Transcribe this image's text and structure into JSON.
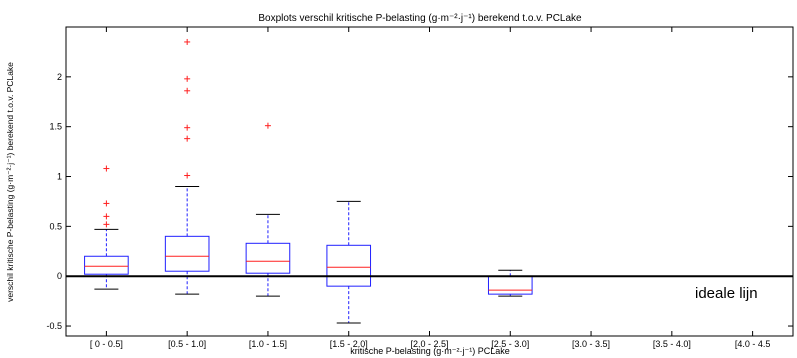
{
  "chart_data": {
    "type": "boxplot",
    "title": "Boxplots verschil kritische P-belasting (g·m⁻²·j⁻¹) berekend t.o.v. PCLake",
    "xlabel": "kritische P-belasting (g·m⁻²·j⁻¹) PCLake",
    "ylabel": "verschil kritische P-belasting (g·m⁻²·j⁻¹) berekend t.o.v. PCLake",
    "ylim": [
      -0.6,
      2.5
    ],
    "yticks": [
      -0.5,
      0,
      0.5,
      1,
      1.5,
      2
    ],
    "ytick_labels": [
      "-0.5",
      "0",
      "0.5",
      "1",
      "1.5",
      "2"
    ],
    "grid": false,
    "categories": [
      "[  0 - 0.5]",
      "[0.5 - 1.0]",
      "[1.0 - 1.5]",
      "[1.5 - 2.0]",
      "[2.0 - 2.5]",
      "[2.5 - 3.0]",
      "[3.0 - 3.5]",
      "[3.5 - 4.0]",
      "[4.0 - 4.5"
    ],
    "boxes": [
      {
        "category": "[  0 - 0.5]",
        "whisker_low": -0.13,
        "q1": 0.02,
        "median": 0.1,
        "q3": 0.2,
        "whisker_high": 0.47,
        "outliers": [
          0.52,
          0.6,
          0.73,
          1.08
        ]
      },
      {
        "category": "[0.5 - 1.0]",
        "whisker_low": -0.18,
        "q1": 0.05,
        "median": 0.2,
        "q3": 0.4,
        "whisker_high": 0.9,
        "outliers": [
          1.01,
          1.38,
          1.49,
          1.86,
          1.98,
          2.35
        ]
      },
      {
        "category": "[1.0 - 1.5]",
        "whisker_low": -0.2,
        "q1": 0.03,
        "median": 0.15,
        "q3": 0.33,
        "whisker_high": 0.62,
        "outliers": [
          1.51
        ]
      },
      {
        "category": "[1.5 - 2.0]",
        "whisker_low": -0.47,
        "q1": -0.1,
        "median": 0.09,
        "q3": 0.31,
        "whisker_high": 0.75,
        "outliers": []
      },
      {
        "category": "[2.0 - 2.5]",
        "empty": true
      },
      {
        "category": "[2.5 - 3.0]",
        "whisker_low": -0.2,
        "q1": -0.18,
        "median": -0.14,
        "q3": 0.0,
        "whisker_high": 0.06,
        "outliers": []
      },
      {
        "category": "[3.0 - 3.5]",
        "empty": true
      },
      {
        "category": "[3.5 - 4.0]",
        "empty": true
      },
      {
        "category": "[4.0 - 4.5",
        "empty": true
      }
    ],
    "reference_line": {
      "y": 0,
      "label": "ideale lijn"
    }
  },
  "colors": {
    "box": "#2020ff",
    "median": "#ff2020",
    "outlier": "#ff2020",
    "reference_line": "#000000"
  }
}
